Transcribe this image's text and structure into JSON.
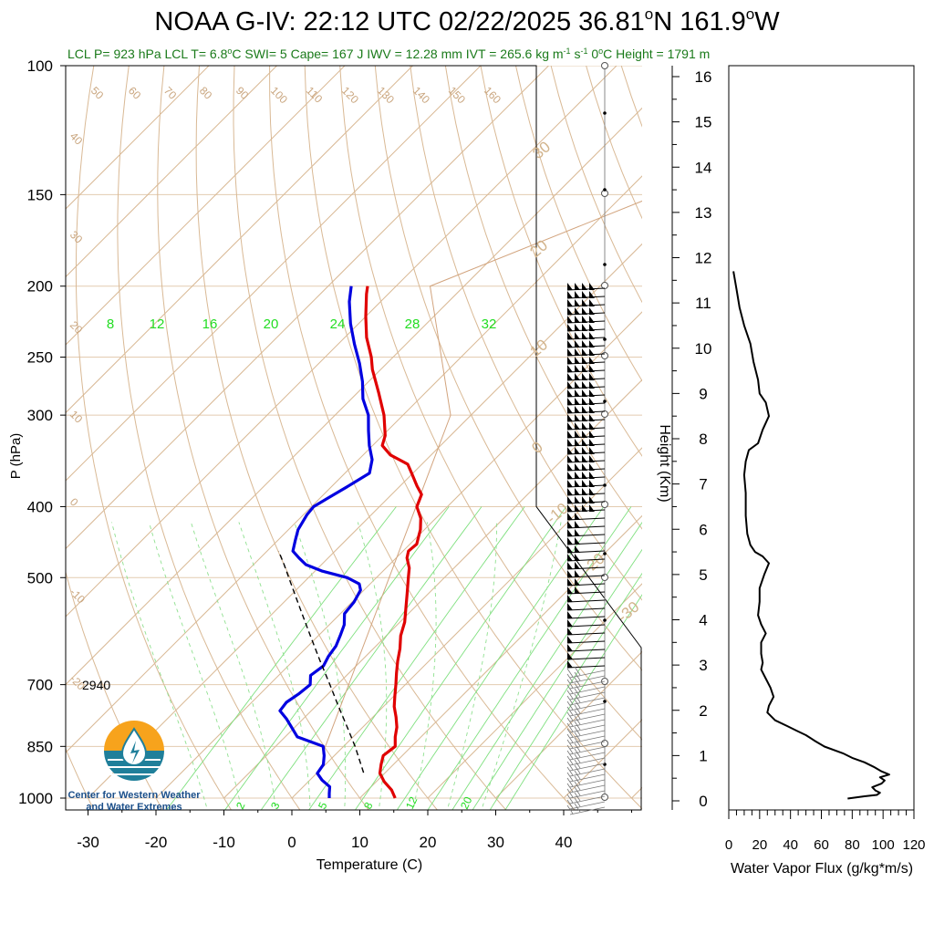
{
  "header": {
    "title": "NOAA G-IV: 22:12 UTC 02/22/2025  36.81",
    "title_lat_deg": "o",
    "title_lat": "N 161.9",
    "title_lon_deg": "o",
    "title_lon": "W",
    "sub_1": "LCL P= 923 hPa  LCL T= 6.8",
    "sub_deg": "o",
    "sub_2": "C  SWI= 5  Cape= 167 J  IWV = 12.28 mm  IVT = 265.6 kg m",
    "sub_exp1": "-1",
    "sub_s": " s",
    "sub_exp2": "-1",
    "sub_3": "  0",
    "sub_deg2": "o",
    "sub_4": "C Height = 1791 m"
  },
  "logo": {
    "line1": "Center for Western Weather",
    "line2": "and Water Extremes"
  },
  "chart_data": [
    {
      "type": "line",
      "subtype": "skew-t",
      "xlabel": "Temperature (C)",
      "ylabel": "P (hPa)",
      "x_ticks": [
        "-30",
        "-20",
        "-10",
        "0",
        "10",
        "20",
        "30",
        "40"
      ],
      "y_ticks": [
        {
          "p": 100,
          "label": "100"
        },
        {
          "p": 150,
          "label": "150"
        },
        {
          "p": 200,
          "label": "200"
        },
        {
          "p": 250,
          "label": "250"
        },
        {
          "p": 300,
          "label": "300"
        },
        {
          "p": 400,
          "label": "400"
        },
        {
          "p": 500,
          "label": "500"
        },
        {
          "p": 700,
          "label": "700"
        },
        {
          "p": 850,
          "label": "850"
        },
        {
          "p": 1000,
          "label": "1000"
        }
      ],
      "annotation": "2940",
      "isotherm_labels": [
        "50",
        "60",
        "70",
        "80",
        "90",
        "100",
        "110",
        "120",
        "130",
        "140",
        "150",
        "160",
        "40",
        "30",
        "20",
        "10",
        "0",
        "-10",
        "-20"
      ],
      "mixing_ratio_labels_top": [
        "8",
        "12",
        "16",
        "20",
        "24",
        "28",
        "32"
      ],
      "mixing_ratio_labels_bottom": [
        "2",
        "3",
        "5",
        "8",
        "12",
        "20"
      ],
      "dry_adiabat_labels_right": [
        "30",
        "20",
        "10",
        "0",
        "-10",
        "-20",
        "-30"
      ],
      "series": [
        {
          "name": "Temperature",
          "color": "#e00000",
          "points": [
            [
              1000,
              15.2
            ],
            [
              975,
              13.5
            ],
            [
              950,
              11.2
            ],
            [
              925,
              9.3
            ],
            [
              900,
              8.2
            ],
            [
              875,
              7.2
            ],
            [
              850,
              7.6
            ],
            [
              825,
              6.2
            ],
            [
              800,
              5.0
            ],
            [
              775,
              3.4
            ],
            [
              750,
              1.6
            ],
            [
              725,
              0.1
            ],
            [
              700,
              -1.4
            ],
            [
              675,
              -3.0
            ],
            [
              650,
              -4.6
            ],
            [
              625,
              -6.1
            ],
            [
              600,
              -7.9
            ],
            [
              575,
              -9.3
            ],
            [
              550,
              -11.2
            ],
            [
              525,
              -13.2
            ],
            [
              500,
              -15.3
            ],
            [
              485,
              -16.6
            ],
            [
              470,
              -18.4
            ],
            [
              460,
              -19.2
            ],
            [
              450,
              -19.0
            ],
            [
              440,
              -19.8
            ],
            [
              430,
              -20.6
            ],
            [
              415,
              -22.2
            ],
            [
              400,
              -24.5
            ],
            [
              385,
              -25.6
            ],
            [
              375,
              -27.5
            ],
            [
              360,
              -30.2
            ],
            [
              350,
              -32.1
            ],
            [
              340,
              -36.0
            ],
            [
              330,
              -38.6
            ],
            [
              320,
              -39.6
            ],
            [
              300,
              -42.8
            ],
            [
              280,
              -46.8
            ],
            [
              260,
              -51.2
            ],
            [
              250,
              -53.2
            ],
            [
              235,
              -56.8
            ],
            [
              220,
              -60.0
            ],
            [
              205,
              -63.2
            ],
            [
              200,
              -64.2
            ]
          ]
        },
        {
          "name": "Dew point",
          "color": "#0000e0",
          "points": [
            [
              1000,
              5.5
            ],
            [
              985,
              4.8
            ],
            [
              965,
              3.9
            ],
            [
              945,
              1.8
            ],
            [
              925,
              0.1
            ],
            [
              900,
              -0.3
            ],
            [
              875,
              -1.5
            ],
            [
              850,
              -3.0
            ],
            [
              825,
              -8.2
            ],
            [
              800,
              -10.5
            ],
            [
              780,
              -12.4
            ],
            [
              760,
              -14.6
            ],
            [
              740,
              -14.9
            ],
            [
              720,
              -14.3
            ],
            [
              700,
              -14.0
            ],
            [
              680,
              -15.3
            ],
            [
              660,
              -14.8
            ],
            [
              640,
              -15.5
            ],
            [
              620,
              -15.9
            ],
            [
              600,
              -16.8
            ],
            [
              580,
              -17.8
            ],
            [
              560,
              -19.4
            ],
            [
              540,
              -19.7
            ],
            [
              520,
              -20.5
            ],
            [
              510,
              -21.6
            ],
            [
              500,
              -24.3
            ],
            [
              490,
              -28.9
            ],
            [
              480,
              -32.3
            ],
            [
              470,
              -34.3
            ],
            [
              460,
              -36.2
            ],
            [
              445,
              -37.4
            ],
            [
              430,
              -38.6
            ],
            [
              410,
              -39.5
            ],
            [
              400,
              -39.7
            ],
            [
              390,
              -38.9
            ],
            [
              375,
              -37.6
            ],
            [
              360,
              -36.4
            ],
            [
              345,
              -38.0
            ],
            [
              330,
              -40.5
            ],
            [
              315,
              -42.8
            ],
            [
              300,
              -45.1
            ],
            [
              285,
              -48.3
            ],
            [
              270,
              -50.9
            ],
            [
              255,
              -54.0
            ],
            [
              240,
              -57.6
            ],
            [
              225,
              -61.2
            ],
            [
              210,
              -64.6
            ],
            [
              200,
              -66.6
            ]
          ]
        },
        {
          "name": "Parcel",
          "color": "#000000",
          "dashed": true,
          "points": [
            [
              923,
              6.8
            ],
            [
              850,
              1.7
            ],
            [
              800,
              -2.3
            ],
            [
              750,
              -6.6
            ],
            [
              700,
              -11.1
            ],
            [
              650,
              -16.0
            ],
            [
              600,
              -21.2
            ],
            [
              550,
              -26.8
            ],
            [
              500,
              -32.9
            ],
            [
              480,
              -35.5
            ],
            [
              460,
              -38.3
            ]
          ]
        }
      ],
      "side_panel_annotations": {
        "cloud_top_height_km": "",
        "note": ""
      }
    },
    {
      "type": "line",
      "xlabel": "Water Vapor Flux (g/kg*m/s)",
      "ylabel": "Height (Km)",
      "x_ticks": [
        "0",
        "20",
        "40",
        "60",
        "80",
        "100",
        "120"
      ],
      "xlim": [
        0,
        120
      ],
      "y_ticks": [
        "0",
        "1",
        "2",
        "3",
        "4",
        "5",
        "6",
        "7",
        "8",
        "9",
        "10",
        "11",
        "12",
        "13",
        "14",
        "15",
        "16"
      ],
      "ylim": [
        0,
        16.3
      ],
      "series": [
        {
          "name": "Water vapor flux",
          "color": "#000000",
          "points": [
            [
              77,
              0.05
            ],
            [
              88,
              0.1
            ],
            [
              96,
              0.13
            ],
            [
              98,
              0.18
            ],
            [
              95,
              0.23
            ],
            [
              93,
              0.3
            ],
            [
              99,
              0.38
            ],
            [
              101,
              0.45
            ],
            [
              98,
              0.52
            ],
            [
              104,
              0.58
            ],
            [
              99,
              0.65
            ],
            [
              94,
              0.75
            ],
            [
              88,
              0.85
            ],
            [
              80,
              0.95
            ],
            [
              74,
              1.05
            ],
            [
              62,
              1.2
            ],
            [
              56,
              1.32
            ],
            [
              50,
              1.45
            ],
            [
              44,
              1.55
            ],
            [
              38,
              1.65
            ],
            [
              30,
              1.78
            ],
            [
              25,
              1.95
            ],
            [
              26,
              2.1
            ],
            [
              29,
              2.3
            ],
            [
              27,
              2.5
            ],
            [
              24,
              2.7
            ],
            [
              21,
              2.9
            ],
            [
              22,
              3.05
            ],
            [
              21,
              3.25
            ],
            [
              21,
              3.5
            ],
            [
              24,
              3.7
            ],
            [
              21,
              3.9
            ],
            [
              19,
              4.1
            ],
            [
              20,
              4.4
            ],
            [
              20,
              4.7
            ],
            [
              23,
              5.0
            ],
            [
              26,
              5.25
            ],
            [
              22,
              5.4
            ],
            [
              17,
              5.5
            ],
            [
              14,
              5.65
            ],
            [
              12,
              5.9
            ],
            [
              11,
              6.3
            ],
            [
              11,
              6.8
            ],
            [
              10,
              7.2
            ],
            [
              11,
              7.5
            ],
            [
              13,
              7.75
            ],
            [
              19,
              7.9
            ],
            [
              22,
              8.2
            ],
            [
              26,
              8.5
            ],
            [
              24,
              8.8
            ],
            [
              20,
              9.0
            ],
            [
              19,
              9.3
            ],
            [
              16,
              9.7
            ],
            [
              14,
              10.1
            ],
            [
              10,
              10.5
            ],
            [
              7,
              10.9
            ],
            [
              5,
              11.3
            ],
            [
              3,
              11.7
            ]
          ]
        }
      ]
    }
  ]
}
